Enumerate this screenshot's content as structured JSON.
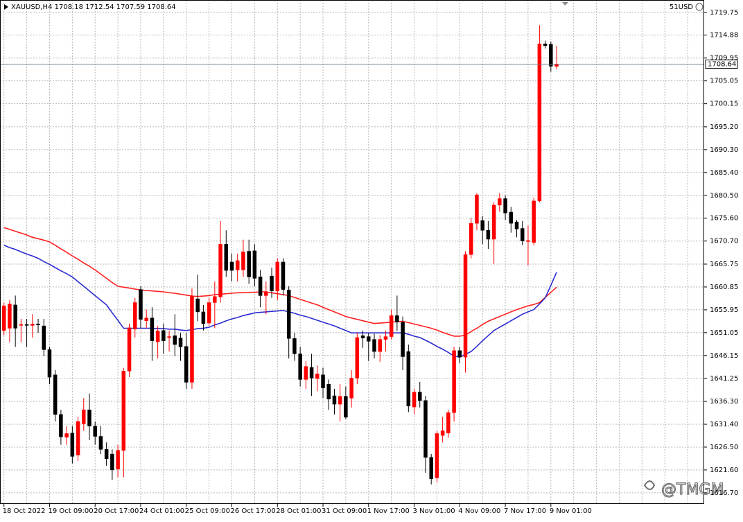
{
  "chart_data": {
    "type": "candlestick",
    "symbol": "XAUUSD,H4",
    "corner_label": "51USD",
    "watermark": "@TMGM",
    "up_color": "#ff0000",
    "down_color": "#000000",
    "grid": true,
    "categories": [
      "18 Oct 2022",
      null,
      null,
      null,
      null,
      null,
      null,
      null,
      "19 Oct 09:00",
      null,
      null,
      null,
      null,
      null,
      null,
      null,
      "20 Oct 17:00",
      null,
      null,
      null,
      null,
      null,
      null,
      null,
      "24 Oct 01:00",
      null,
      null,
      null,
      null,
      null,
      null,
      null,
      "25 Oct 09:00",
      null,
      null,
      null,
      null,
      null,
      null,
      null,
      "26 Oct 17:00",
      null,
      null,
      null,
      null,
      null,
      null,
      null,
      "28 Oct 01:00",
      null,
      null,
      null,
      null,
      null,
      null,
      null,
      "31 Oct 09:00",
      null,
      null,
      null,
      null,
      null,
      null,
      null,
      "1 Nov 17:00",
      null,
      null,
      null,
      null,
      null,
      null,
      null,
      "3 Nov 01:00",
      null,
      null,
      null,
      null,
      null,
      null,
      null,
      "4 Nov 09:00",
      null,
      null,
      null,
      null,
      null,
      null,
      null,
      "7 Nov 17:00",
      null,
      null,
      null,
      null,
      null,
      null,
      null,
      "9 Nov 01:00",
      null
    ],
    "open": [
      1651.5,
      1652,
      1657,
      1652.6,
      1652.8,
      1652.6,
      1652.9,
      1652.5,
      1647.4,
      1642,
      1633.5,
      1628.6,
      1629.5,
      1624.8,
      1631.5,
      1634.5,
      1631,
      1628.8,
      1626,
      1625,
      1621.8,
      1625.8,
      1642.8,
      1651.8,
      1660.3,
      1653.6,
      1654.2,
      1649.1,
      1651.5,
      1650,
      1650.4,
      1649.9,
      1648.1,
      1640.4,
      1658.3,
      1655.5,
      1653.1,
      1657.5,
      1658.7,
      1670,
      1666.2,
      1664.5,
      1664.5,
      1668.5,
      1668.6,
      1663,
      1659,
      1663.2,
      1660,
      1666.2,
      1660.2,
      1649.8,
      1646.5,
      1641,
      1643.6,
      1641.2,
      1642,
      1640,
      1637.5,
      1635.7,
      1637.4,
      1637,
      1641.3,
      1650.4,
      1650.2,
      1649.6,
      1647,
      1649.6,
      1650.2,
      1654.7,
      1653.3,
      1647,
      1635.1,
      1638.3,
      1636.5,
      1624.3,
      1619.9,
      1629,
      1629.5,
      1633.9,
      1647.2,
      1645.8,
      1667.8,
      1674.5,
      1675.1,
      1673,
      1671.1,
      1678.4,
      1679.8,
      1676.9,
      1674.8,
      1673.4,
      1670.6,
      1670.4,
      1679.3,
      1713,
      1712.9,
      1708.18
    ],
    "high": [
      1657.5,
      1658,
      1659,
      1654,
      1654,
      1655,
      1654,
      1654,
      1648,
      1643,
      1634.5,
      1631,
      1631,
      1633,
      1637,
      1638,
      1632,
      1631,
      1627.5,
      1626,
      1627,
      1643.5,
      1653,
      1658.5,
      1661,
      1656,
      1656.5,
      1652.5,
      1653,
      1651.5,
      1655,
      1651,
      1651,
      1660.5,
      1663.5,
      1657,
      1658.5,
      1662,
      1675,
      1673,
      1668,
      1668,
      1671,
      1671,
      1670,
      1664.5,
      1662,
      1665,
      1667,
      1667,
      1661,
      1651,
      1648,
      1645,
      1646.5,
      1644,
      1643.5,
      1641,
      1639,
      1640,
      1639.5,
      1643,
      1651,
      1651.5,
      1651,
      1650.8,
      1650.5,
      1651.5,
      1656,
      1659,
      1654.5,
      1648.5,
      1639,
      1640.5,
      1637.5,
      1625,
      1630,
      1633,
      1634.5,
      1648,
      1648,
      1668.5,
      1675.7,
      1681,
      1676,
      1675,
      1679,
      1681,
      1680.5,
      1678,
      1675.2,
      1675,
      1674,
      1680,
      1717,
      1713.7,
      1713.5,
      1712.54
    ],
    "low": [
      1650.5,
      1649,
      1648,
      1649,
      1648,
      1650,
      1651,
      1646,
      1640,
      1632,
      1627,
      1627,
      1623,
      1623.5,
      1630,
      1628,
      1627,
      1625,
      1622.5,
      1619.5,
      1620,
      1620,
      1641.5,
      1650,
      1652,
      1652,
      1645,
      1645.5,
      1646.5,
      1647,
      1646,
      1645,
      1639,
      1639,
      1653.5,
      1651.5,
      1652.5,
      1652,
      1657.5,
      1663,
      1662,
      1662,
      1663,
      1661.5,
      1661,
      1656.5,
      1655,
      1658.5,
      1658,
      1659,
      1645.5,
      1645,
      1639.5,
      1639,
      1637.5,
      1638.5,
      1637,
      1634.5,
      1633.5,
      1632,
      1632.5,
      1635,
      1640,
      1647.8,
      1645,
      1645.5,
      1644.8,
      1647,
      1649.6,
      1651.4,
      1643,
      1634,
      1633.5,
      1635,
      1621,
      1618.5,
      1619,
      1627.5,
      1628.5,
      1632,
      1644.5,
      1642.5,
      1667,
      1673,
      1670,
      1669,
      1665.8,
      1677,
      1675.2,
      1672.5,
      1671.5,
      1669.8,
      1665.5,
      1669.8,
      1679,
      1712,
      1707,
      1707.59
    ],
    "close": [
      1656.8,
      1657.2,
      1652,
      1652.8,
      1652.6,
      1652.9,
      1652.7,
      1647.4,
      1641.5,
      1633.5,
      1628.7,
      1629.4,
      1624.5,
      1632,
      1634.5,
      1631,
      1628.8,
      1626,
      1624,
      1621.6,
      1625.8,
      1642.8,
      1652.1,
      1657.5,
      1653.9,
      1654.2,
      1649.3,
      1651.4,
      1649.3,
      1650.2,
      1648.5,
      1648,
      1640.4,
      1658.8,
      1655.5,
      1653,
      1657.5,
      1658.8,
      1670,
      1664.4,
      1664.4,
      1666.5,
      1668.4,
      1663,
      1662.7,
      1659,
      1659.8,
      1660,
      1666.2,
      1660.3,
      1649.8,
      1646.5,
      1641,
      1643.8,
      1641.3,
      1642.2,
      1639.2,
      1636.8,
      1635.7,
      1637.4,
      1632.9,
      1641.3,
      1650,
      1649.9,
      1649.2,
      1647,
      1649.6,
      1650.2,
      1654.7,
      1653.3,
      1645.9,
      1635.3,
      1638.3,
      1636.5,
      1624.3,
      1619.7,
      1629.4,
      1630,
      1633.9,
      1647.2,
      1645.8,
      1667.8,
      1674.5,
      1680.6,
      1673,
      1671.1,
      1678.4,
      1679.8,
      1676.7,
      1674.5,
      1673.3,
      1670.7,
      1670.8,
      1679.3,
      1713,
      1712.6,
      1708.2,
      1708.64
    ],
    "series": [
      {
        "color": "#ff2020",
        "values": [
          1673.6,
          1673.2,
          1672.8,
          1672.4,
          1672.0,
          1671.5,
          1671.2,
          1670.9,
          1670.5,
          1669.8,
          1669.0,
          1668.3,
          1667.5,
          1666.8,
          1666.0,
          1665.3,
          1664.5,
          1663.6,
          1662.7,
          1661.8,
          1661.0,
          1660.8,
          1660.6,
          1660.4,
          1660.2,
          1660.1,
          1660.0,
          1659.9,
          1659.8,
          1659.6,
          1659.5,
          1659.3,
          1659.1,
          1658.9,
          1658.8,
          1658.9,
          1659.0,
          1659.2,
          1659.3,
          1659.4,
          1659.5,
          1659.6,
          1659.6,
          1659.7,
          1659.7,
          1659.8,
          1659.8,
          1659.6,
          1659.4,
          1659.2,
          1659.0,
          1658.6,
          1658.2,
          1657.8,
          1657.4,
          1657.0,
          1656.5,
          1656.0,
          1655.5,
          1655.0,
          1654.5,
          1654.2,
          1653.9,
          1653.6,
          1653.3,
          1653.0,
          1653.1,
          1653.2,
          1653.3,
          1653.4,
          1653.5,
          1653.2,
          1652.9,
          1652.6,
          1652.3,
          1652.0,
          1651.6,
          1651.1,
          1650.7,
          1650.3,
          1650.3,
          1650.5,
          1651.3,
          1652.0,
          1652.8,
          1653.5,
          1654.0,
          1654.5,
          1655.0,
          1655.5,
          1656.0,
          1656.4,
          1656.8,
          1657.1,
          1657.5,
          1658.6,
          1659.7,
          1660.8
        ]
      },
      {
        "color": "#2a2ad0",
        "values": [
          1669.8,
          1669.3,
          1668.9,
          1668.4,
          1667.9,
          1667.5,
          1667.0,
          1666.3,
          1665.7,
          1665.0,
          1664.3,
          1663.7,
          1663.0,
          1662.0,
          1661.0,
          1660.0,
          1659.0,
          1658.0,
          1657.0,
          1655.3,
          1653.7,
          1652.0,
          1652.0,
          1652.0,
          1652.0,
          1652.0,
          1652.0,
          1651.9,
          1651.9,
          1651.8,
          1651.8,
          1651.6,
          1651.5,
          1651.7,
          1651.9,
          1652.0,
          1652.2,
          1652.7,
          1653.1,
          1653.6,
          1654.0,
          1654.3,
          1654.7,
          1655.0,
          1655.3,
          1655.4,
          1655.5,
          1655.6,
          1655.7,
          1655.8,
          1655.5,
          1655.2,
          1654.8,
          1654.5,
          1654.1,
          1653.7,
          1653.3,
          1652.9,
          1652.5,
          1652.0,
          1651.5,
          1651.0,
          1651.0,
          1651.0,
          1651.0,
          1651.0,
          1651.0,
          1651.0,
          1651.0,
          1651.0,
          1651.0,
          1650.7,
          1650.3,
          1650.0,
          1649.4,
          1648.8,
          1648.1,
          1647.5,
          1646.8,
          1646.0,
          1645.8,
          1646.4,
          1647.0,
          1648.1,
          1649.3,
          1650.4,
          1651.5,
          1652.2,
          1652.9,
          1653.6,
          1654.3,
          1655.0,
          1655.5,
          1656.0,
          1657.2,
          1658.5,
          1661.2,
          1664.0
        ]
      }
    ],
    "ylim": [
      1614.3,
      1722.4
    ],
    "yticks": [
      {
        "value": 1719.75,
        "label": "1719.75"
      },
      {
        "value": 1714.88,
        "label": "1714.88"
      },
      {
        "value": 1709.95,
        "label": "1709.95"
      },
      {
        "value": 1705.05,
        "label": "1705.05"
      },
      {
        "value": 1700.15,
        "label": "1700.15"
      },
      {
        "value": 1695.2,
        "label": "1695.20"
      },
      {
        "value": 1690.3,
        "label": "1690.30"
      },
      {
        "value": 1685.4,
        "label": "1685.40"
      },
      {
        "value": 1680.5,
        "label": "1680.50"
      },
      {
        "value": 1675.6,
        "label": "1675.60"
      },
      {
        "value": 1670.7,
        "label": "1670.70"
      },
      {
        "value": 1665.75,
        "label": "1665.75"
      },
      {
        "value": 1660.85,
        "label": "1660.85"
      },
      {
        "value": 1655.95,
        "label": "1655.95"
      },
      {
        "value": 1651.05,
        "label": "1651.05"
      },
      {
        "value": 1646.15,
        "label": "1646.15"
      },
      {
        "value": 1641.25,
        "label": "1641.25"
      },
      {
        "value": 1636.3,
        "label": "1636.30"
      },
      {
        "value": 1631.4,
        "label": "1631.40"
      },
      {
        "value": 1626.5,
        "label": "1626.50"
      },
      {
        "value": 1621.6,
        "label": "1621.60"
      },
      {
        "value": 1616.7,
        "label": "1616.70"
      }
    ]
  }
}
